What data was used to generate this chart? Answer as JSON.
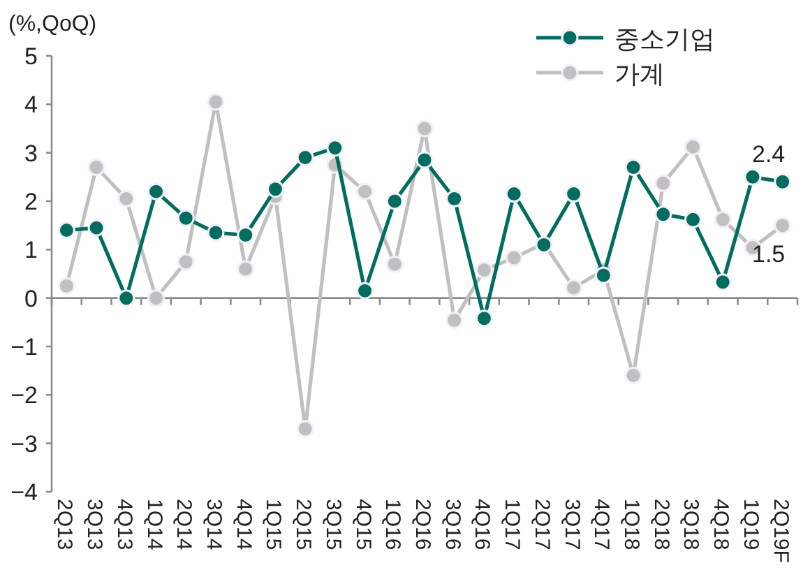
{
  "chart_data": {
    "type": "line",
    "ylabel": "(%,QoQ)",
    "categories": [
      "2Q13",
      "3Q13",
      "4Q13",
      "1Q14",
      "2Q14",
      "3Q14",
      "4Q14",
      "1Q15",
      "2Q15",
      "3Q15",
      "4Q15",
      "1Q16",
      "2Q16",
      "3Q16",
      "4Q16",
      "1Q17",
      "2Q17",
      "3Q17",
      "4Q17",
      "1Q18",
      "2Q18",
      "3Q18",
      "4Q18",
      "1Q19",
      "2Q19F"
    ],
    "series": [
      {
        "name": "중소기업",
        "color": "#006e5f",
        "values": [
          1.4,
          1.45,
          0.0,
          2.2,
          1.65,
          1.35,
          1.3,
          2.25,
          2.9,
          3.1,
          0.15,
          2.0,
          2.85,
          2.05,
          -0.42,
          2.15,
          1.1,
          2.15,
          0.47,
          2.7,
          1.73,
          1.62,
          0.33,
          2.5,
          2.4
        ]
      },
      {
        "name": "가계",
        "color": "#c0c0c0",
        "values": [
          0.25,
          2.7,
          2.05,
          0.0,
          0.75,
          4.05,
          0.6,
          2.1,
          -2.7,
          2.75,
          2.2,
          0.7,
          3.5,
          -0.46,
          0.58,
          0.83,
          1.13,
          0.21,
          0.58,
          -1.6,
          2.37,
          3.12,
          1.62,
          1.04,
          1.5
        ]
      }
    ],
    "ylim": [
      -4,
      5
    ],
    "yticks": [
      -4,
      -3,
      -2,
      -1,
      0,
      1,
      2,
      3,
      4,
      5
    ],
    "marker": "circle",
    "line_style": "solid",
    "legend": "top right",
    "annotations": [
      {
        "text": "2.4",
        "x": "2Q19F",
        "y": 2.4
      },
      {
        "text": "1.5",
        "x": "2Q19F",
        "y": 1.5
      }
    ]
  }
}
